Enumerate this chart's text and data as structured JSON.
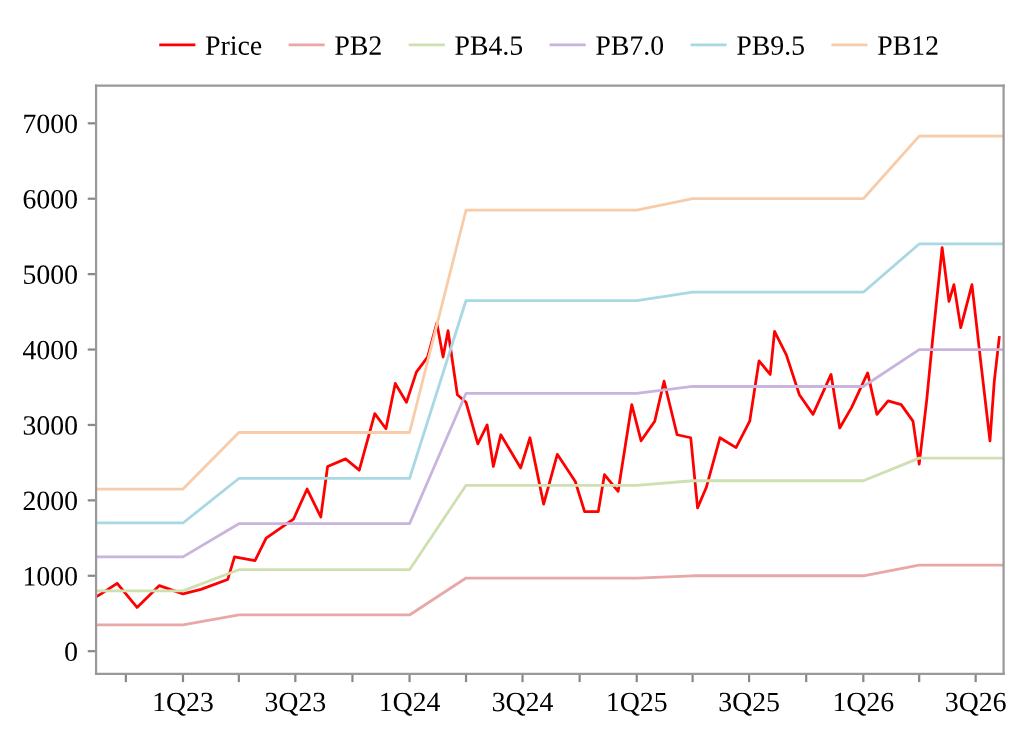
{
  "chart_data": {
    "type": "line",
    "legend": "top",
    "grid": false,
    "marker": "none",
    "line_style": "solid",
    "xlim": [
      "2022-08-14",
      "2026-08-15"
    ],
    "ylim": [
      -300,
      7500
    ],
    "yticks": [
      0,
      1000,
      2000,
      3000,
      4000,
      5000,
      6000,
      7000
    ],
    "xticks": [
      {
        "value": "2022-10-01",
        "label": null
      },
      {
        "value": "2023-01-01",
        "label": "1Q23"
      },
      {
        "value": "2023-04-01",
        "label": null
      },
      {
        "value": "2023-07-01",
        "label": "3Q23"
      },
      {
        "value": "2023-10-01",
        "label": null
      },
      {
        "value": "2024-01-01",
        "label": "1Q24"
      },
      {
        "value": "2024-04-01",
        "label": null
      },
      {
        "value": "2024-07-01",
        "label": "3Q24"
      },
      {
        "value": "2024-10-01",
        "label": null
      },
      {
        "value": "2025-01-01",
        "label": "1Q25"
      },
      {
        "value": "2025-04-01",
        "label": null
      },
      {
        "value": "2025-07-01",
        "label": "3Q25"
      },
      {
        "value": "2025-10-01",
        "label": null
      },
      {
        "value": "2026-01-01",
        "label": "1Q26"
      },
      {
        "value": "2026-04-01",
        "label": null
      },
      {
        "value": "2026-07-01",
        "label": "3Q26"
      }
    ],
    "series": [
      {
        "name": "Price",
        "color": "#ff0000",
        "x": [
          "2022-08-14",
          "2022-08-22",
          "2022-09-17",
          "2022-10-19",
          "2022-11-24",
          "2023-01-01",
          "2023-01-30",
          "2023-03-14",
          "2023-03-25",
          "2023-04-27",
          "2023-05-15",
          "2023-06-28",
          "2023-07-20",
          "2023-08-11",
          "2023-08-22",
          "2023-09-20",
          "2023-10-12",
          "2023-11-06",
          "2023-11-24",
          "2023-12-09",
          "2023-12-27",
          "2024-01-12",
          "2024-01-30",
          "2024-02-14",
          "2024-02-24",
          "2024-03-03",
          "2024-03-18",
          "2024-04-01",
          "2024-04-20",
          "2024-05-05",
          "2024-05-15",
          "2024-05-27",
          "2024-06-28",
          "2024-07-13",
          "2024-08-04",
          "2024-08-26",
          "2024-09-24",
          "2024-10-09",
          "2024-10-31",
          "2024-11-10",
          "2024-12-02",
          "2024-12-24",
          "2025-01-08",
          "2025-01-30",
          "2025-02-14",
          "2025-03-07",
          "2025-03-29",
          "2025-04-09",
          "2025-04-23",
          "2025-05-15",
          "2025-06-10",
          "2025-07-02",
          "2025-07-17",
          "2025-08-04",
          "2025-08-11",
          "2025-08-30",
          "2025-09-20",
          "2025-10-12",
          "2025-11-10",
          "2025-11-24",
          "2025-12-13",
          "2026-01-08",
          "2026-01-23",
          "2026-02-10",
          "2026-03-03",
          "2026-03-22",
          "2026-04-01",
          "2026-04-13",
          "2026-04-23",
          "2026-05-08",
          "2026-05-19",
          "2026-05-27",
          "2026-06-07",
          "2026-06-25",
          "2026-07-09",
          "2026-07-24",
          "2026-07-31",
          "2026-08-08"
        ],
        "values": [
          720,
          760,
          900,
          580,
          870,
          760,
          820,
          950,
          1250,
          1200,
          1500,
          1750,
          2150,
          1780,
          2450,
          2550,
          2400,
          3150,
          2950,
          3550,
          3300,
          3700,
          3900,
          4350,
          3900,
          4250,
          3400,
          3300,
          2750,
          3000,
          2450,
          2870,
          2430,
          2830,
          1950,
          2610,
          2250,
          1850,
          1850,
          2340,
          2120,
          3270,
          2790,
          3050,
          3580,
          2870,
          2830,
          1900,
          2170,
          2830,
          2700,
          3050,
          3850,
          3670,
          4240,
          3930,
          3400,
          3140,
          3670,
          2960,
          3230,
          3690,
          3140,
          3320,
          3270,
          3050,
          2480,
          3320,
          4160,
          5350,
          4640,
          4860,
          4290,
          4860,
          3850,
          2790,
          3580,
          4160
        ]
      },
      {
        "name": "PB2",
        "color": "#e8a8a8",
        "x": [
          "2022-08-14",
          "2023-01-01",
          "2023-04-01",
          "2024-01-01",
          "2024-04-01",
          "2025-01-01",
          "2025-04-01",
          "2026-01-01",
          "2026-04-01",
          "2026-08-15"
        ],
        "values": [
          350,
          350,
          480,
          480,
          970,
          970,
          1000,
          1000,
          1140,
          1140
        ]
      },
      {
        "name": "PB4.5",
        "color": "#cfe0b0",
        "x": [
          "2022-08-14",
          "2023-01-01",
          "2023-04-01",
          "2024-01-01",
          "2024-04-01",
          "2025-01-01",
          "2025-04-01",
          "2026-01-01",
          "2026-04-01",
          "2026-08-15"
        ],
        "values": [
          800,
          800,
          1080,
          1080,
          2200,
          2200,
          2260,
          2260,
          2560,
          2560
        ]
      },
      {
        "name": "PB7.0",
        "color": "#c8b4dc",
        "x": [
          "2022-08-14",
          "2023-01-01",
          "2023-04-01",
          "2024-01-01",
          "2024-04-01",
          "2025-01-01",
          "2025-04-01",
          "2026-01-01",
          "2026-04-01",
          "2026-08-15"
        ],
        "values": [
          1250,
          1250,
          1690,
          1690,
          3420,
          3420,
          3510,
          3510,
          4000,
          4000
        ]
      },
      {
        "name": "PB9.5",
        "color": "#a8d8e4",
        "x": [
          "2022-08-14",
          "2023-01-01",
          "2023-04-01",
          "2024-01-01",
          "2024-04-01",
          "2025-01-01",
          "2025-04-01",
          "2026-01-01",
          "2026-04-01",
          "2026-08-15"
        ],
        "values": [
          1700,
          1700,
          2290,
          2290,
          4650,
          4650,
          4760,
          4760,
          5400,
          5400
        ]
      },
      {
        "name": "PB12",
        "color": "#f8cca8",
        "x": [
          "2022-08-14",
          "2023-01-01",
          "2023-04-01",
          "2024-01-01",
          "2024-04-01",
          "2025-01-01",
          "2025-04-01",
          "2026-01-01",
          "2026-04-01",
          "2026-08-15"
        ],
        "values": [
          2150,
          2150,
          2900,
          2900,
          5850,
          5850,
          6000,
          6000,
          6830,
          6830
        ]
      }
    ]
  }
}
